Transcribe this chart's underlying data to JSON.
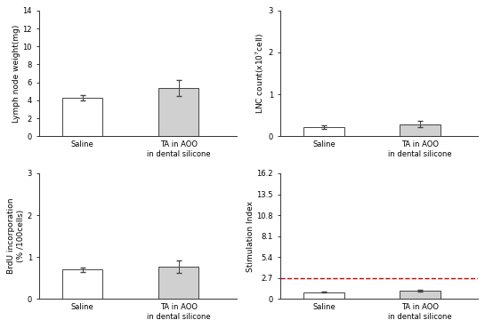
{
  "panels": [
    {
      "ylabel": "Lymph node weight(mg)",
      "ylim": [
        0,
        14
      ],
      "yticks": [
        0,
        2,
        4,
        6,
        8,
        10,
        12,
        14
      ],
      "yticklabels": [
        "0",
        "2",
        "4",
        "6",
        "8",
        "10",
        "12",
        "14"
      ],
      "bars": [
        {
          "label": "Saline",
          "value": 4.3,
          "error": 0.3,
          "color": "#ffffff",
          "edgecolor": "#444444"
        },
        {
          "label": "TA in AOO\nin dental silicone",
          "value": 5.4,
          "error": 0.9,
          "color": "#d0d0d0",
          "edgecolor": "#444444"
        }
      ]
    },
    {
      "ylabel": "LNC count(x10$^7$cell)",
      "ylim": [
        0,
        3
      ],
      "yticks": [
        0,
        1,
        2,
        3
      ],
      "yticklabels": [
        "0",
        "1",
        "2",
        "3"
      ],
      "bars": [
        {
          "label": "Saline",
          "value": 0.22,
          "error": 0.04,
          "color": "#ffffff",
          "edgecolor": "#444444"
        },
        {
          "label": "TA in AOO\nin dental silicone",
          "value": 0.29,
          "error": 0.07,
          "color": "#d0d0d0",
          "edgecolor": "#444444"
        }
      ]
    },
    {
      "ylabel": "BrdU incorporation\n(% /100cells)",
      "ylim": [
        0,
        3
      ],
      "yticks": [
        0,
        1,
        2,
        3
      ],
      "yticklabels": [
        "0",
        "1",
        "2",
        "3"
      ],
      "bars": [
        {
          "label": "Saline",
          "value": 0.7,
          "error": 0.06,
          "color": "#ffffff",
          "edgecolor": "#444444"
        },
        {
          "label": "TA in AOO\nin dental silicone",
          "value": 0.77,
          "error": 0.15,
          "color": "#d0d0d0",
          "edgecolor": "#444444"
        }
      ]
    },
    {
      "ylabel": "Stimulation Index",
      "ylim": [
        0,
        16.2
      ],
      "yticks": [
        0,
        2.7,
        5.4,
        8.1,
        10.8,
        13.5,
        16.2
      ],
      "yticklabels": [
        "0",
        "2.7",
        "5.4",
        "8.1",
        "10.8",
        "13.5",
        "16.2"
      ],
      "dashed_line": 2.7,
      "dashed_color": "#cc0000",
      "bars": [
        {
          "label": "Saline",
          "value": 0.9,
          "error": 0.1,
          "color": "#ffffff",
          "edgecolor": "#444444"
        },
        {
          "label": "TA in AOO\nin dental silicone",
          "value": 1.05,
          "error": 0.12,
          "color": "#d0d0d0",
          "edgecolor": "#444444"
        }
      ]
    }
  ],
  "background_color": "#ffffff",
  "bar_width": 0.42,
  "x_positions": [
    0.5,
    1.5
  ],
  "xlim": [
    0.05,
    2.1
  ],
  "tick_fontsize": 6,
  "label_fontsize": 6.5,
  "xtick_fontsize": 6
}
